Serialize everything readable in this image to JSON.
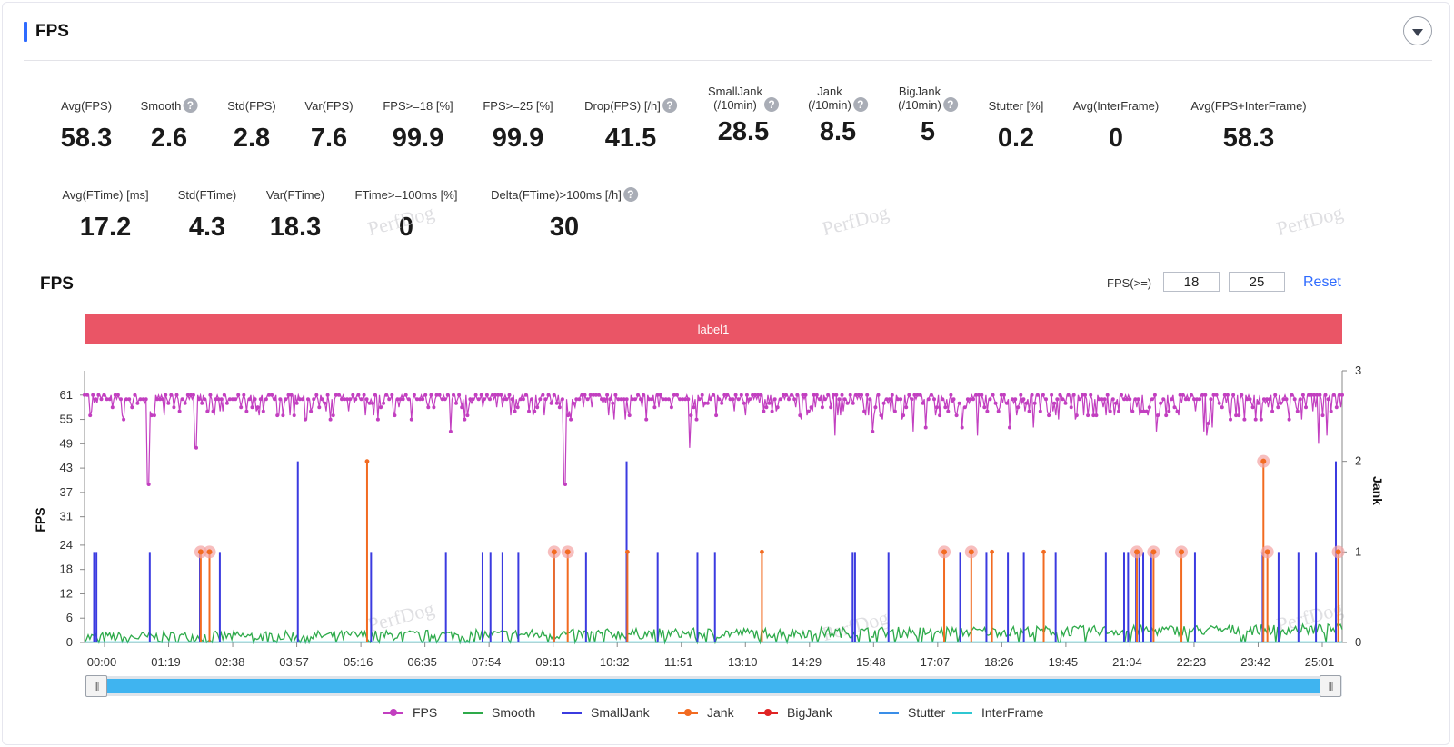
{
  "panel": {
    "title": "FPS"
  },
  "metrics_row1": [
    {
      "label": "Avg(FPS)",
      "value": "58.3",
      "help": false
    },
    {
      "label": "Smooth",
      "value": "2.6",
      "help": true
    },
    {
      "label": "Std(FPS)",
      "value": "2.8",
      "help": false
    },
    {
      "label": "Var(FPS)",
      "value": "7.6",
      "help": false
    },
    {
      "label": "FPS>=18 [%]",
      "value": "99.9",
      "help": false
    },
    {
      "label": "FPS>=25 [%]",
      "value": "99.9",
      "help": false
    },
    {
      "label": "Drop(FPS) [/h]",
      "value": "41.5",
      "help": true
    },
    {
      "label": "SmallJank",
      "label2": "(/10min)",
      "value": "28.5",
      "help": true
    },
    {
      "label": "Jank",
      "label2": "(/10min)",
      "value": "8.5",
      "help": true
    },
    {
      "label": "BigJank",
      "label2": "(/10min)",
      "value": "5",
      "help": true
    },
    {
      "label": "Stutter [%]",
      "value": "0.2",
      "help": false
    },
    {
      "label": "Avg(InterFrame)",
      "value": "0",
      "help": false
    },
    {
      "label": "Avg(FPS+InterFrame)",
      "value": "58.3",
      "help": false
    }
  ],
  "metrics_row2": [
    {
      "label": "Avg(FTime) [ms]",
      "value": "17.2",
      "help": false
    },
    {
      "label": "Std(FTime)",
      "value": "4.3",
      "help": false
    },
    {
      "label": "Var(FTime)",
      "value": "18.3",
      "help": false
    },
    {
      "label": "FTime>=100ms [%]",
      "value": "0",
      "help": false
    },
    {
      "label": "Delta(FTime)>100ms [/h]",
      "value": "30",
      "help": true
    }
  ],
  "watermark": "PerfDog",
  "chart": {
    "title": "FPS",
    "threshold_label": "FPS(>=)",
    "threshold_1": "18",
    "threshold_2": "25",
    "reset_label": "Reset",
    "label_bar": "label1",
    "slider_grip": "|||"
  },
  "colors": {
    "fps": "#c23fc0",
    "smooth": "#2eaa4a",
    "smalljank": "#3b3be0",
    "jank": "#f26b21",
    "bigjank": "#e02424",
    "stutter": "#3a8ee8",
    "interframe": "#2fc7d2",
    "label_bar": "#ea5566",
    "accent": "#2f6bff"
  },
  "chart_data": {
    "type": "line",
    "xlabel": "",
    "ylabel": "FPS",
    "y2label": "Jank",
    "x_ticks": [
      "00:00",
      "01:19",
      "02:38",
      "03:57",
      "05:16",
      "06:35",
      "07:54",
      "09:13",
      "10:32",
      "11:51",
      "13:10",
      "14:29",
      "15:48",
      "17:07",
      "18:26",
      "19:45",
      "21:04",
      "22:23",
      "23:42",
      "25:01"
    ],
    "x_range_seconds": [
      0,
      1580
    ],
    "y_ticks": [
      0,
      6,
      12,
      18,
      24,
      31,
      37,
      43,
      49,
      55,
      61
    ],
    "ylim": [
      0,
      67
    ],
    "y2_ticks": [
      0,
      1,
      2,
      3
    ],
    "y2lim": [
      0,
      3
    ],
    "legend": [
      "FPS",
      "Smooth",
      "SmallJank",
      "Jank",
      "BigJank",
      "Stutter",
      "InterFrame"
    ],
    "legend_position": "bottom",
    "series": [
      {
        "name": "FPS",
        "summary": {
          "typical": 60,
          "range": [
            39,
            61
          ]
        },
        "dips": [
          [
            80,
            39
          ],
          [
            140,
            48
          ],
          [
            460,
            52
          ],
          [
            603,
            39
          ],
          [
            760,
            48
          ],
          [
            1550,
            49
          ]
        ]
      },
      {
        "name": "Smooth",
        "summary": {
          "typical": 2.6,
          "range": [
            0,
            7
          ]
        }
      },
      {
        "name": "SmallJank",
        "axis": "Jank",
        "events": [
          [
            12,
            1
          ],
          [
            15,
            1
          ],
          [
            82,
            1
          ],
          [
            145,
            1
          ],
          [
            170,
            1
          ],
          [
            268,
            2
          ],
          [
            360,
            1
          ],
          [
            454,
            1
          ],
          [
            500,
            1
          ],
          [
            510,
            1
          ],
          [
            525,
            1
          ],
          [
            545,
            1
          ],
          [
            590,
            1
          ],
          [
            630,
            1
          ],
          [
            681,
            2
          ],
          [
            720,
            1
          ],
          [
            770,
            1
          ],
          [
            792,
            1
          ],
          [
            965,
            1
          ],
          [
            968,
            1
          ],
          [
            1010,
            1
          ],
          [
            1100,
            1
          ],
          [
            1133,
            1
          ],
          [
            1160,
            1
          ],
          [
            1180,
            1
          ],
          [
            1220,
            1
          ],
          [
            1283,
            1
          ],
          [
            1306,
            1
          ],
          [
            1311,
            1
          ],
          [
            1321,
            1
          ],
          [
            1325,
            1
          ],
          [
            1330,
            1
          ],
          [
            1340,
            1
          ],
          [
            1395,
            1
          ],
          [
            1480,
            1
          ],
          [
            1500,
            1
          ],
          [
            1525,
            1
          ],
          [
            1547,
            1
          ],
          [
            1572,
            2
          ]
        ]
      },
      {
        "name": "Jank",
        "axis": "Jank",
        "events": [
          [
            355,
            2
          ],
          [
            682,
            1
          ],
          [
            851,
            1
          ],
          [
            1140,
            1
          ],
          [
            1205,
            1
          ]
        ]
      },
      {
        "name": "BigJank",
        "axis": "Jank",
        "events": [
          [
            146,
            1
          ],
          [
            157,
            1
          ],
          [
            590,
            1
          ],
          [
            607,
            1
          ],
          [
            1080,
            1
          ],
          [
            1114,
            1
          ],
          [
            1322,
            1
          ],
          [
            1343,
            1
          ],
          [
            1378,
            1
          ],
          [
            1481,
            2
          ],
          [
            1486,
            1
          ],
          [
            1575,
            1
          ]
        ]
      },
      {
        "name": "Stutter",
        "axis": "Jank",
        "events": []
      },
      {
        "name": "InterFrame",
        "axis": "FPS",
        "values_constant": 0
      }
    ]
  }
}
